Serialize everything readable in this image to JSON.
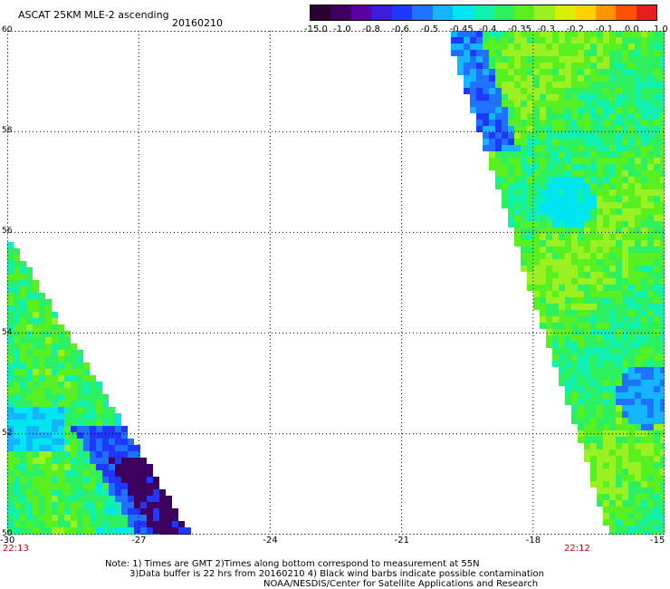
{
  "title": "ASCAT 25KM MLE-2 ascending",
  "date": "20160210",
  "colorbar": {
    "labels": [
      "-15.0",
      "-1.0",
      "-0.8",
      "-0.6",
      "-0.5",
      "-0.45",
      "-0.4",
      "-0.35",
      "-0.3",
      "-0.2",
      "-0.1",
      "0.0",
      "1.0"
    ],
    "colors": [
      "#2a0030",
      "#3d0060",
      "#5b00a0",
      "#3c1cd8",
      "#1e38ff",
      "#1e72ff",
      "#14b4ff",
      "#00e6f0",
      "#10f0b0",
      "#2cf060",
      "#58f020",
      "#9af020",
      "#d8f000",
      "#ffd200",
      "#ff9600",
      "#ff5000",
      "#e81e1e"
    ]
  },
  "lat_labels": [
    "60",
    "58",
    "56",
    "54",
    "52",
    "50"
  ],
  "lon_labels": [
    "-30",
    "-27",
    "-24",
    "-21",
    "-18",
    "-15"
  ],
  "time_labels": {
    "left": "22:13",
    "right": "22:12"
  },
  "notes": [
    "Note: 1) Times are GMT 2)Times along bottom correspond to measurement at 55N",
    "3)Data buffer is 22 hrs from 20160210 4) Black wind barbs indicate possible contamination",
    "NOAA/NESDIS/Center for Satellite Applications and Research"
  ],
  "map": {
    "lon_range": [
      -30,
      -15
    ],
    "lat_range": [
      50,
      60
    ],
    "grid_lines": "dotted",
    "background": "white"
  }
}
